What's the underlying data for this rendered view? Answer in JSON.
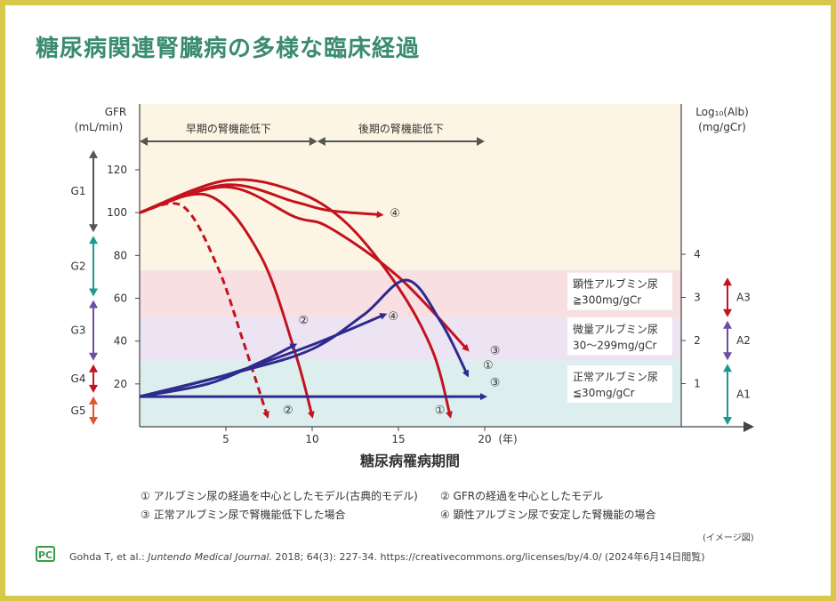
{
  "title": "糖尿病関連腎臓病の多様な臨床経過",
  "chart_data": {
    "type": "line",
    "xlabel": "糖尿病罹病期間",
    "x_unit": "(年)",
    "x_ticks": [
      5,
      10,
      15,
      20
    ],
    "xlim": [
      0,
      32
    ],
    "left_axis": {
      "label_line1": "GFR",
      "label_line2": "(mL/min)",
      "ticks": [
        20,
        40,
        60,
        80,
        100,
        120
      ],
      "ylim": [
        0,
        130
      ]
    },
    "right_axis": {
      "label_line1": "Log₁₀(Alb)",
      "label_line2": "(mg/gCr)",
      "ticks": [
        1,
        2,
        3,
        4
      ]
    },
    "top_phases": [
      {
        "label": "早期の腎機能低下",
        "from": 0,
        "to": 10.3
      },
      {
        "label": "後期の腎機能低下",
        "from": 10.3,
        "to": 20
      }
    ],
    "bands": [
      {
        "name": "顕性アルブミン尿",
        "line2": "≧300mg/gCr",
        "color": "#f7dfe2",
        "y_from": 51,
        "y_to": 73
      },
      {
        "name": "微量アルブミン尿",
        "line2": "30〜299mg/gCr",
        "color": "#ece4f3",
        "y_from": 31,
        "y_to": 51
      },
      {
        "name": "正常アルブミン尿",
        "line2": "≦30mg/gCr",
        "color": "#dcefee",
        "y_from": 0,
        "y_to": 31
      }
    ],
    "g_stages": [
      {
        "label": "G1",
        "from": 90,
        "to": 130,
        "color": "#555555"
      },
      {
        "label": "G2",
        "from": 60,
        "to": 90,
        "color": "#1b9a8f"
      },
      {
        "label": "G3",
        "from": 30,
        "to": 60,
        "color": "#6b4fa0"
      },
      {
        "label": "G4",
        "from": 15,
        "to": 30,
        "color": "#c4121f"
      },
      {
        "label": "G5",
        "from": 0,
        "to": 15,
        "color": "#e0552a"
      }
    ],
    "a_stages": [
      {
        "label": "A3",
        "from": 3.5,
        "to": 2.5,
        "color": "#c4121f"
      },
      {
        "label": "A2",
        "from": 2.5,
        "to": 1.5,
        "color": "#6b4fa0"
      },
      {
        "label": "A1",
        "from": 1.5,
        "to": 0,
        "color": "#1b9a8f"
      }
    ],
    "gfr_series": [
      {
        "id": "①",
        "kind": "solid",
        "points": [
          [
            0,
            100
          ],
          [
            5,
            115
          ],
          [
            9,
            110
          ],
          [
            12,
            95
          ],
          [
            15,
            65
          ],
          [
            17,
            35
          ],
          [
            18,
            5
          ]
        ]
      },
      {
        "id": "②",
        "kind": "solid",
        "points": [
          [
            0,
            100
          ],
          [
            4,
            108
          ],
          [
            7,
            80
          ],
          [
            9,
            35
          ],
          [
            10,
            5
          ]
        ]
      },
      {
        "id": "②",
        "kind": "dashed",
        "points": [
          [
            0,
            100
          ],
          [
            2.5,
            103
          ],
          [
            4.5,
            75
          ],
          [
            6,
            40
          ],
          [
            7.4,
            5
          ]
        ]
      },
      {
        "id": "③",
        "kind": "solid",
        "points": [
          [
            0,
            100
          ],
          [
            5,
            112
          ],
          [
            9,
            98
          ],
          [
            11,
            93
          ],
          [
            15,
            70
          ],
          [
            19,
            36
          ]
        ]
      },
      {
        "id": "④",
        "kind": "solid",
        "points": [
          [
            0,
            100
          ],
          [
            5,
            113
          ],
          [
            9,
            105
          ],
          [
            11,
            101
          ],
          [
            14,
            99
          ]
        ]
      }
    ],
    "alb_series": [
      {
        "id": "①",
        "points": [
          [
            0,
            0.7
          ],
          [
            6,
            1.3
          ],
          [
            10,
            1.8
          ],
          [
            13,
            2.6
          ],
          [
            15.5,
            3.4
          ],
          [
            17.5,
            2.4
          ],
          [
            19,
            1.2
          ]
        ]
      },
      {
        "id": "②",
        "points": [
          [
            0,
            0.7
          ],
          [
            4,
            1.0
          ],
          [
            7,
            1.5
          ],
          [
            9,
            1.9
          ]
        ]
      },
      {
        "id": "③",
        "points": [
          [
            0,
            0.7
          ],
          [
            20,
            0.7
          ]
        ]
      },
      {
        "id": "④",
        "points": [
          [
            0,
            0.7
          ],
          [
            5,
            1.2
          ],
          [
            10,
            1.9
          ],
          [
            14.2,
            2.6
          ]
        ]
      }
    ],
    "curve_labels": [
      {
        "text": "④",
        "x": 14.8,
        "y": 100
      },
      {
        "text": "③",
        "x": 20.6,
        "y": 36
      },
      {
        "text": "①",
        "x": 20.2,
        "y": 29
      },
      {
        "text": "②",
        "x": 9.5,
        "y": 50
      },
      {
        "text": "④",
        "x": 14.7,
        "y": 52
      },
      {
        "text": "③",
        "x": 20.6,
        "y": 21
      },
      {
        "text": "②",
        "x": 8.6,
        "y": 8
      },
      {
        "text": "①",
        "x": 17.4,
        "y": 8
      }
    ]
  },
  "legend": [
    "① アルブミン尿の経過を中心としたモデル(古典的モデル)",
    "② GFRの経過を中心としたモデル",
    "③ 正常アルブミン尿で腎機能低下した場合",
    "④ 顕性アルブミン尿で安定した腎機能の場合"
  ],
  "note": "(イメージ図)",
  "logo_text": "PC",
  "source": {
    "authors": "Gohda T, et al.: ",
    "journal": "Juntendo Medical Journal.",
    "rest": " 2018; 64(3): 227-34. https://creativecommons.org/licenses/by/4.0/ (2024年6月14日閲覧)"
  },
  "colors": {
    "red": "#c4121f",
    "blue": "#2e2a8e",
    "top_band": "#fdf5e3",
    "title": "#3a8c6e"
  }
}
